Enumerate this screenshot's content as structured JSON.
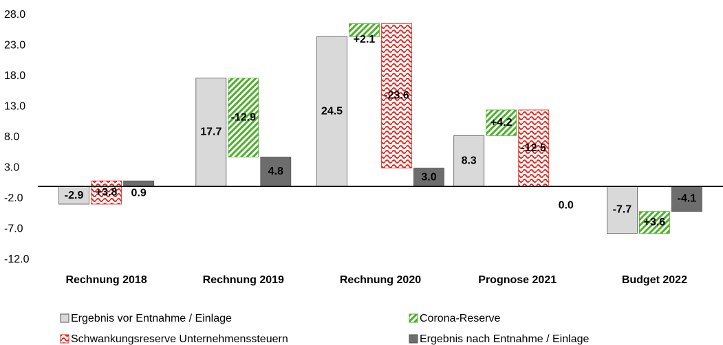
{
  "chart_data": {
    "type": "waterfall-bar",
    "categories": [
      "Rechnung 2018",
      "Rechnung 2019",
      "Rechnung 2020",
      "Prognose 2021",
      "Budget 2022"
    ],
    "series": [
      {
        "name": "Ergebnis vor Entnahme / Einlage",
        "color": "#d9d9d9",
        "pattern": "solid",
        "values": [
          -2.9,
          17.7,
          24.5,
          8.3,
          -7.7
        ],
        "value_labels": [
          "-2.9",
          "17.7",
          "24.5",
          "8.3",
          "-7.7"
        ]
      },
      {
        "name": "Corona-Reserve",
        "color": "#4caf2a",
        "pattern": "hatch",
        "values": [
          null,
          -12.9,
          2.1,
          4.2,
          3.6
        ],
        "value_labels": [
          null,
          "-12.9",
          "+2.1",
          "+4.2",
          "+3.6"
        ]
      },
      {
        "name": "Schwankungsreserve Unternehmenssteuern",
        "color": "#e8251c",
        "pattern": "wave",
        "values": [
          3.8,
          null,
          -23.6,
          -12.5,
          null
        ],
        "value_labels": [
          "+3.8",
          null,
          "-23.6",
          "-12.5",
          null
        ]
      },
      {
        "name": "Ergebnis nach Entnahme / Einlage",
        "color": "#6d6d6d",
        "pattern": "solid",
        "total": true,
        "values": [
          0.9,
          4.8,
          3.0,
          0.0,
          -4.1
        ],
        "value_labels": [
          "0.9",
          "4.8",
          "3.0",
          "0.0",
          "-4.1"
        ]
      }
    ],
    "ylim": [
      -12,
      28
    ],
    "yticks": [
      {
        "value": 28,
        "label": "28.0"
      },
      {
        "value": 23,
        "label": "23.0"
      },
      {
        "value": 18,
        "label": "18.0"
      },
      {
        "value": 13,
        "label": "13.0"
      },
      {
        "value": 8,
        "label": "8.0"
      },
      {
        "value": 3,
        "label": "3.0"
      },
      {
        "value": -2,
        "label": "-2.0"
      },
      {
        "value": -7,
        "label": "-7.0"
      },
      {
        "value": -12,
        "label": "-12.0"
      }
    ],
    "legend": "bottom"
  }
}
